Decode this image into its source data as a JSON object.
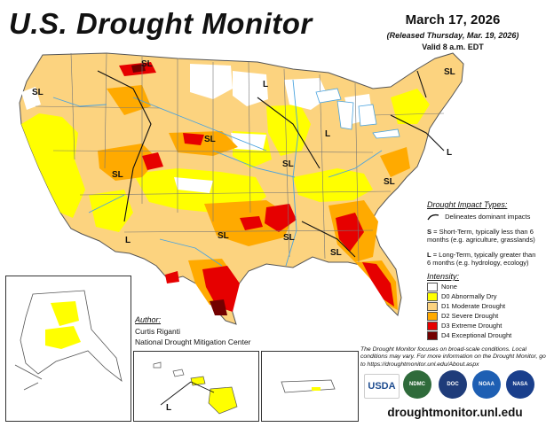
{
  "header": {
    "title": "U.S. Drought Monitor",
    "date": "March 17, 2026",
    "released": "(Released Thursday, Mar. 19, 2026)",
    "valid": "Valid 8 a.m. EDT"
  },
  "impact_legend": {
    "title": "Drought Impact Types:",
    "line_label": "Delineates dominant impacts",
    "s_code": "S",
    "s_text": "= Short-Term, typically less than 6 months (e.g. agriculture, grasslands)",
    "l_code": "L",
    "l_text": "= Long-Term, typically greater than 6 months (e.g. hydrology, ecology)"
  },
  "intensity_legend": {
    "title": "Intensity:",
    "items": [
      {
        "label": "None",
        "color": "#ffffff"
      },
      {
        "label": "D0 Abnormally Dry",
        "color": "#ffff00"
      },
      {
        "label": "D1 Moderate Drought",
        "color": "#fcd37f"
      },
      {
        "label": "D2 Severe Drought",
        "color": "#ffaa00"
      },
      {
        "label": "D3 Extreme Drought",
        "color": "#e60000"
      },
      {
        "label": "D4 Exceptional Drought",
        "color": "#730000"
      }
    ]
  },
  "author": {
    "label": "Author:",
    "name": "Curtis Riganti",
    "org": "National Drought Mitigation Center"
  },
  "note": "The Drought Monitor focuses on broad-scale conditions. Local conditions may vary. For more information on the Drought Monitor, go to https://droughtmonitor.unl.edu/About.aspx",
  "logos": {
    "usda": "USDA",
    "ndmc": "NDMC",
    "doc": "DOC",
    "noaa": "NOAA",
    "nasa": "NASA"
  },
  "url": "droughtmonitor.unl.edu",
  "map_labels": {
    "sl": "SL",
    "l": "L"
  },
  "colors": {
    "none": "#ffffff",
    "d0": "#ffff00",
    "d1": "#fcd37f",
    "d2": "#ffaa00",
    "d3": "#e60000",
    "d4": "#730000",
    "water": "#4aa3df",
    "border": "#555555"
  }
}
